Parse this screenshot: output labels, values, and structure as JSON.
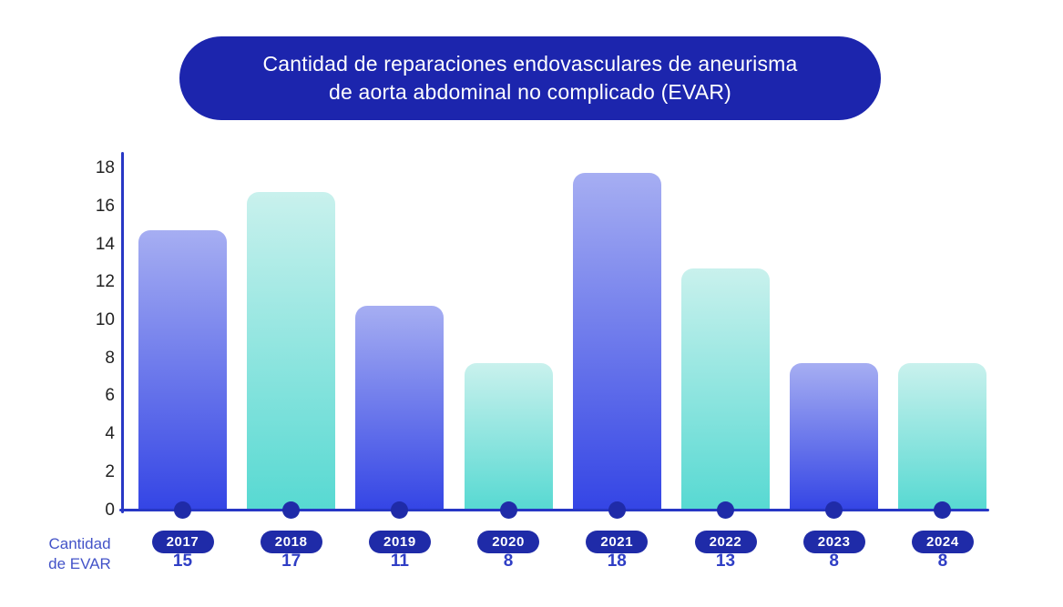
{
  "title": {
    "text": "Cantidad de reparaciones endovasculares de aneurisma de aorta abdominal no complicado (EVAR)",
    "lines": [
      "Cantidad de reparaciones endovasculares de aneurisma",
      "de aorta abdominal no complicado (EVAR)"
    ],
    "background": "#1C25AD",
    "text_color": "#FFFFFF"
  },
  "chart_data": {
    "type": "bar",
    "title": "Cantidad de reparaciones endovasculares de aneurisma de aorta abdominal no complicado (EVAR)",
    "categories": [
      "2017",
      "2018",
      "2019",
      "2020",
      "2021",
      "2022",
      "2023",
      "2024"
    ],
    "values": [
      15,
      17,
      11,
      8,
      18,
      13,
      8,
      8
    ],
    "xlabel": "Cantidad de EVAR",
    "xlabel_lines": [
      "Cantidad",
      "de EVAR"
    ],
    "ylabel": "",
    "ylim": [
      0,
      18
    ],
    "yticks": [
      0,
      2,
      4,
      6,
      8,
      10,
      12,
      14,
      16,
      18
    ],
    "grid": false,
    "legend": "none",
    "bar_color_pattern": [
      "blue",
      "teal"
    ],
    "colors": {
      "blue_bar_top": "#A6AEF2",
      "blue_bar_bottom": "#3445E5",
      "teal_bar_top": "#C9F1ED",
      "teal_bar_bottom": "#57D9D2",
      "axis": "#2737C5",
      "tick_label": "#222222",
      "axis_dot": "#1F2BA8",
      "year_pill_bg": "#1F2BA8",
      "year_pill_text": "#FFFFFF",
      "value_text": "#2F3EC5",
      "caption_text": "#4353C8"
    }
  }
}
